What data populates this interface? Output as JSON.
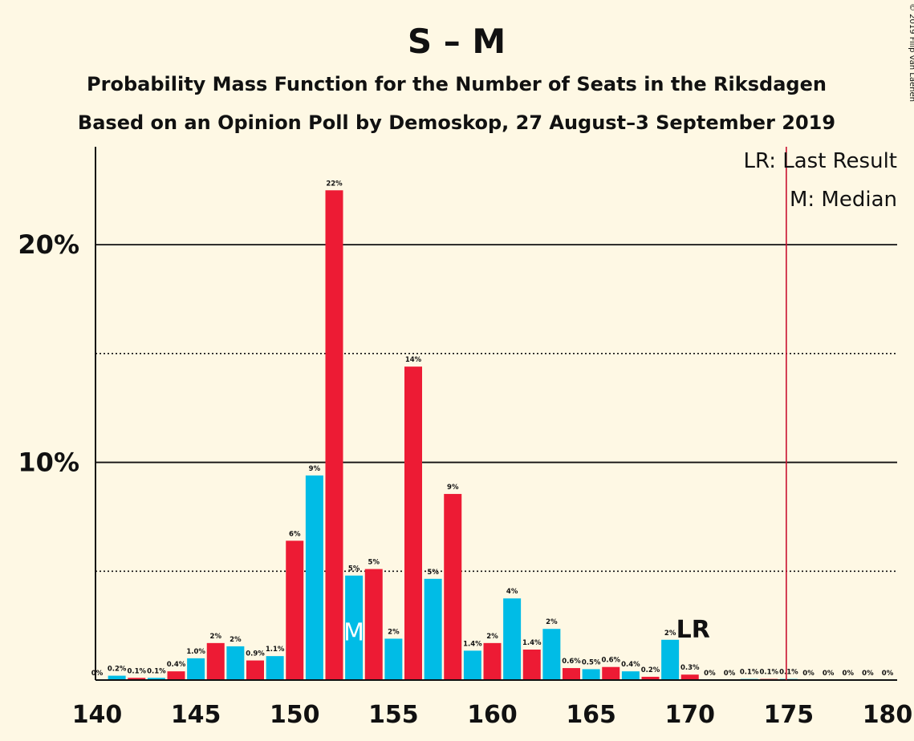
{
  "header": {
    "title": "S – M",
    "subtitle1": "Probability Mass Function for the Number of Seats in the Riksdagen",
    "subtitle2": "Based on an Opinion Poll by Demoskop, 27 August–3 September 2019",
    "copyright": "© 2019 Filip van Laenen"
  },
  "legend": {
    "lr": "LR: Last Result",
    "median": "M: Median"
  },
  "markers": {
    "median_label": "M",
    "median_seat": 153,
    "lr_label": "LR",
    "lr_seat": 170,
    "majority_line_x": 175,
    "majority_color": "#c8102e"
  },
  "colors": {
    "red": "#ed1b34",
    "blue": "#00bce6",
    "background": "#fef8e4"
  },
  "chart_data": {
    "type": "bar",
    "xlim": [
      140,
      180
    ],
    "ylim": [
      0,
      24.5
    ],
    "x_ticks": [
      "140",
      "145",
      "150",
      "155",
      "160",
      "165",
      "170",
      "175",
      "180"
    ],
    "y_ticks": [
      {
        "value": 10,
        "label": "10%"
      },
      {
        "value": 20,
        "label": "20%"
      }
    ],
    "solid_gridlines": [
      10,
      20
    ],
    "dotted_gridlines": [
      5,
      15
    ],
    "bars": [
      {
        "x": 140,
        "value": 0.0,
        "label": "0%",
        "color": "red"
      },
      {
        "x": 141,
        "value": 0.2,
        "label": "0.2%",
        "color": "blue"
      },
      {
        "x": 142,
        "value": 0.1,
        "label": "0.1%",
        "color": "red"
      },
      {
        "x": 143,
        "value": 0.1,
        "label": "0.1%",
        "color": "blue"
      },
      {
        "x": 144,
        "value": 0.4,
        "label": "0.4%",
        "color": "red"
      },
      {
        "x": 145,
        "value": 1.0,
        "label": "1.0%",
        "color": "blue"
      },
      {
        "x": 146,
        "value": 1.7,
        "label": "2%",
        "color": "red"
      },
      {
        "x": 147,
        "value": 1.55,
        "label": "2%",
        "color": "blue"
      },
      {
        "x": 148,
        "value": 0.9,
        "label": "0.9%",
        "color": "red"
      },
      {
        "x": 149,
        "value": 1.1,
        "label": "1.1%",
        "color": "blue"
      },
      {
        "x": 150,
        "value": 6.4,
        "label": "6%",
        "color": "red"
      },
      {
        "x": 151,
        "value": 9.4,
        "label": "9%",
        "color": "blue"
      },
      {
        "x": 152,
        "value": 22.5,
        "label": "22%",
        "color": "red"
      },
      {
        "x": 153,
        "value": 4.8,
        "label": "5%",
        "color": "blue"
      },
      {
        "x": 154,
        "value": 5.1,
        "label": "5%",
        "color": "red"
      },
      {
        "x": 155,
        "value": 1.9,
        "label": "2%",
        "color": "blue"
      },
      {
        "x": 156,
        "value": 14.4,
        "label": "14%",
        "color": "red"
      },
      {
        "x": 157,
        "value": 4.65,
        "label": "5%",
        "color": "blue"
      },
      {
        "x": 158,
        "value": 8.55,
        "label": "9%",
        "color": "red"
      },
      {
        "x": 159,
        "value": 1.35,
        "label": "1.4%",
        "color": "blue"
      },
      {
        "x": 160,
        "value": 1.7,
        "label": "2%",
        "color": "red"
      },
      {
        "x": 161,
        "value": 3.75,
        "label": "4%",
        "color": "blue"
      },
      {
        "x": 162,
        "value": 1.4,
        "label": "1.4%",
        "color": "red"
      },
      {
        "x": 163,
        "value": 2.35,
        "label": "2%",
        "color": "blue"
      },
      {
        "x": 164,
        "value": 0.55,
        "label": "0.6%",
        "color": "red"
      },
      {
        "x": 165,
        "value": 0.5,
        "label": "0.5%",
        "color": "blue"
      },
      {
        "x": 166,
        "value": 0.6,
        "label": "0.6%",
        "color": "red"
      },
      {
        "x": 167,
        "value": 0.4,
        "label": "0.4%",
        "color": "blue"
      },
      {
        "x": 168,
        "value": 0.15,
        "label": "0.2%",
        "color": "red"
      },
      {
        "x": 169,
        "value": 1.85,
        "label": "2%",
        "color": "blue"
      },
      {
        "x": 170,
        "value": 0.25,
        "label": "0.3%",
        "color": "red"
      },
      {
        "x": 171,
        "value": 0.0,
        "label": "0%",
        "color": "blue"
      },
      {
        "x": 172,
        "value": 0.0,
        "label": "0%",
        "color": "red"
      },
      {
        "x": 173,
        "value": 0.05,
        "label": "0.1%",
        "color": "blue"
      },
      {
        "x": 174,
        "value": 0.05,
        "label": "0.1%",
        "color": "red"
      },
      {
        "x": 175,
        "value": 0.05,
        "label": "0.1%",
        "color": "blue"
      },
      {
        "x": 176,
        "value": 0.0,
        "label": "0%",
        "color": "red"
      },
      {
        "x": 177,
        "value": 0.0,
        "label": "0%",
        "color": "blue"
      },
      {
        "x": 178,
        "value": 0.0,
        "label": "0%",
        "color": "red"
      },
      {
        "x": 179,
        "value": 0.0,
        "label": "0%",
        "color": "blue"
      },
      {
        "x": 180,
        "value": 0.0,
        "label": "0%",
        "color": "red"
      }
    ]
  }
}
